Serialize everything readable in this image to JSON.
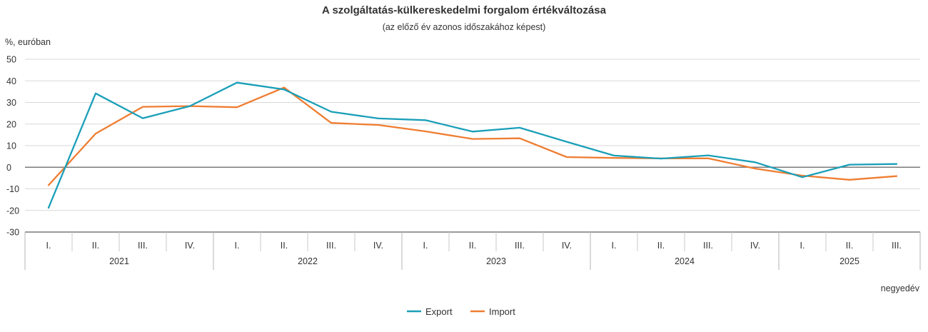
{
  "chart_data": {
    "type": "line",
    "title": "A szolgáltatás-külkereskedelmi forgalom értékváltozása",
    "subtitle": "(az előző év azonos időszakához képest)",
    "ylabel": "%, euróban",
    "xlabel": "negyedév",
    "ylim": [
      -30,
      50
    ],
    "yticks": [
      50,
      40,
      30,
      20,
      10,
      0,
      -10,
      -20,
      -30
    ],
    "quarters": [
      "I.",
      "II.",
      "III.",
      "IV.",
      "I.",
      "II.",
      "III.",
      "IV.",
      "I.",
      "II.",
      "III.",
      "IV.",
      "I.",
      "II.",
      "III.",
      "IV.",
      "I.",
      "II.",
      "III."
    ],
    "years": [
      {
        "label": "2021",
        "count": 4
      },
      {
        "label": "2022",
        "count": 4
      },
      {
        "label": "2023",
        "count": 4
      },
      {
        "label": "2024",
        "count": 4
      },
      {
        "label": "2025",
        "count": 3
      }
    ],
    "series": [
      {
        "name": "Export",
        "color": "#1a9fb8",
        "values": [
          -18.8,
          34.2,
          22.7,
          28.3,
          39.2,
          36.0,
          25.7,
          22.6,
          21.8,
          16.5,
          18.3,
          11.8,
          5.4,
          4.0,
          5.5,
          2.3,
          -4.6,
          1.2,
          1.5
        ]
      },
      {
        "name": "Import",
        "color": "#ef7d32",
        "values": [
          -8.3,
          15.6,
          28.0,
          28.3,
          27.8,
          36.9,
          20.5,
          19.6,
          16.6,
          13.1,
          13.4,
          4.7,
          4.3,
          4.1,
          4.1,
          -0.6,
          -3.9,
          -5.8,
          -4.1
        ]
      }
    ]
  }
}
